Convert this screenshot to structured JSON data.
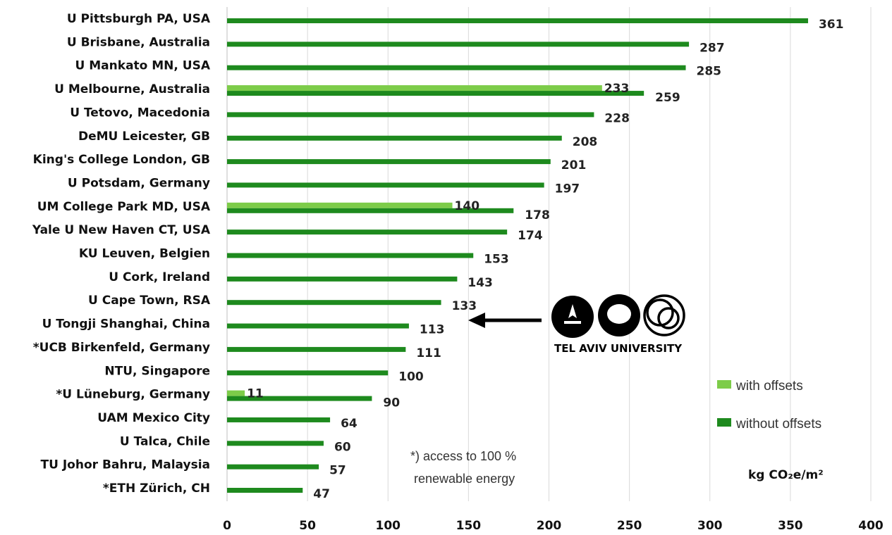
{
  "chart_data": {
    "type": "bar",
    "orientation": "horizontal",
    "categories": [
      "U Pittsburgh PA, USA",
      "U Brisbane, Australia",
      "U Mankato MN, USA",
      "U Melbourne, Australia",
      "U Tetovo, Macedonia",
      "DeMU Leicester, GB",
      "King's College London, GB",
      "U Potsdam, Germany",
      "UM College Park MD, USA",
      "Yale U New Haven CT, USA",
      "KU Leuven, Belgien",
      "U Cork, Ireland",
      "U Cape Town, RSA",
      "U Tongji Shanghai, China",
      "*UCB Birkenfeld, Germany",
      "NTU, Singapore",
      "*U Lüneburg, Germany",
      "UAM Mexico City",
      "U Talca, Chile",
      "TU Johor Bahru, Malaysia",
      "*ETH Zürich, CH"
    ],
    "series": [
      {
        "name": "with offsets",
        "color": "#7dcc49",
        "values": [
          null,
          null,
          null,
          233,
          null,
          null,
          null,
          null,
          140,
          null,
          null,
          null,
          null,
          null,
          null,
          null,
          11,
          null,
          null,
          null,
          null
        ]
      },
      {
        "name": "without offsets",
        "color": "#1e8a1e",
        "values": [
          361,
          287,
          285,
          259,
          228,
          208,
          201,
          197,
          178,
          174,
          153,
          143,
          133,
          113,
          111,
          100,
          90,
          64,
          60,
          57,
          47
        ]
      }
    ],
    "xlim": [
      0,
      400
    ],
    "xticks": [
      "0",
      "50",
      "100",
      "150",
      "200",
      "250",
      "300",
      "350",
      "400"
    ],
    "xlabel": "kg CO₂e/m²",
    "grid": "vertical",
    "legend": "bottom-right",
    "annotation_lines": [
      "*) access to 100 %",
      "renewable energy"
    ],
    "highlight_category": "U Cape Town, RSA",
    "logo": {
      "text": "TEL AVIV UNIVERSITY",
      "icon": "tel-aviv-university-logo"
    }
  }
}
